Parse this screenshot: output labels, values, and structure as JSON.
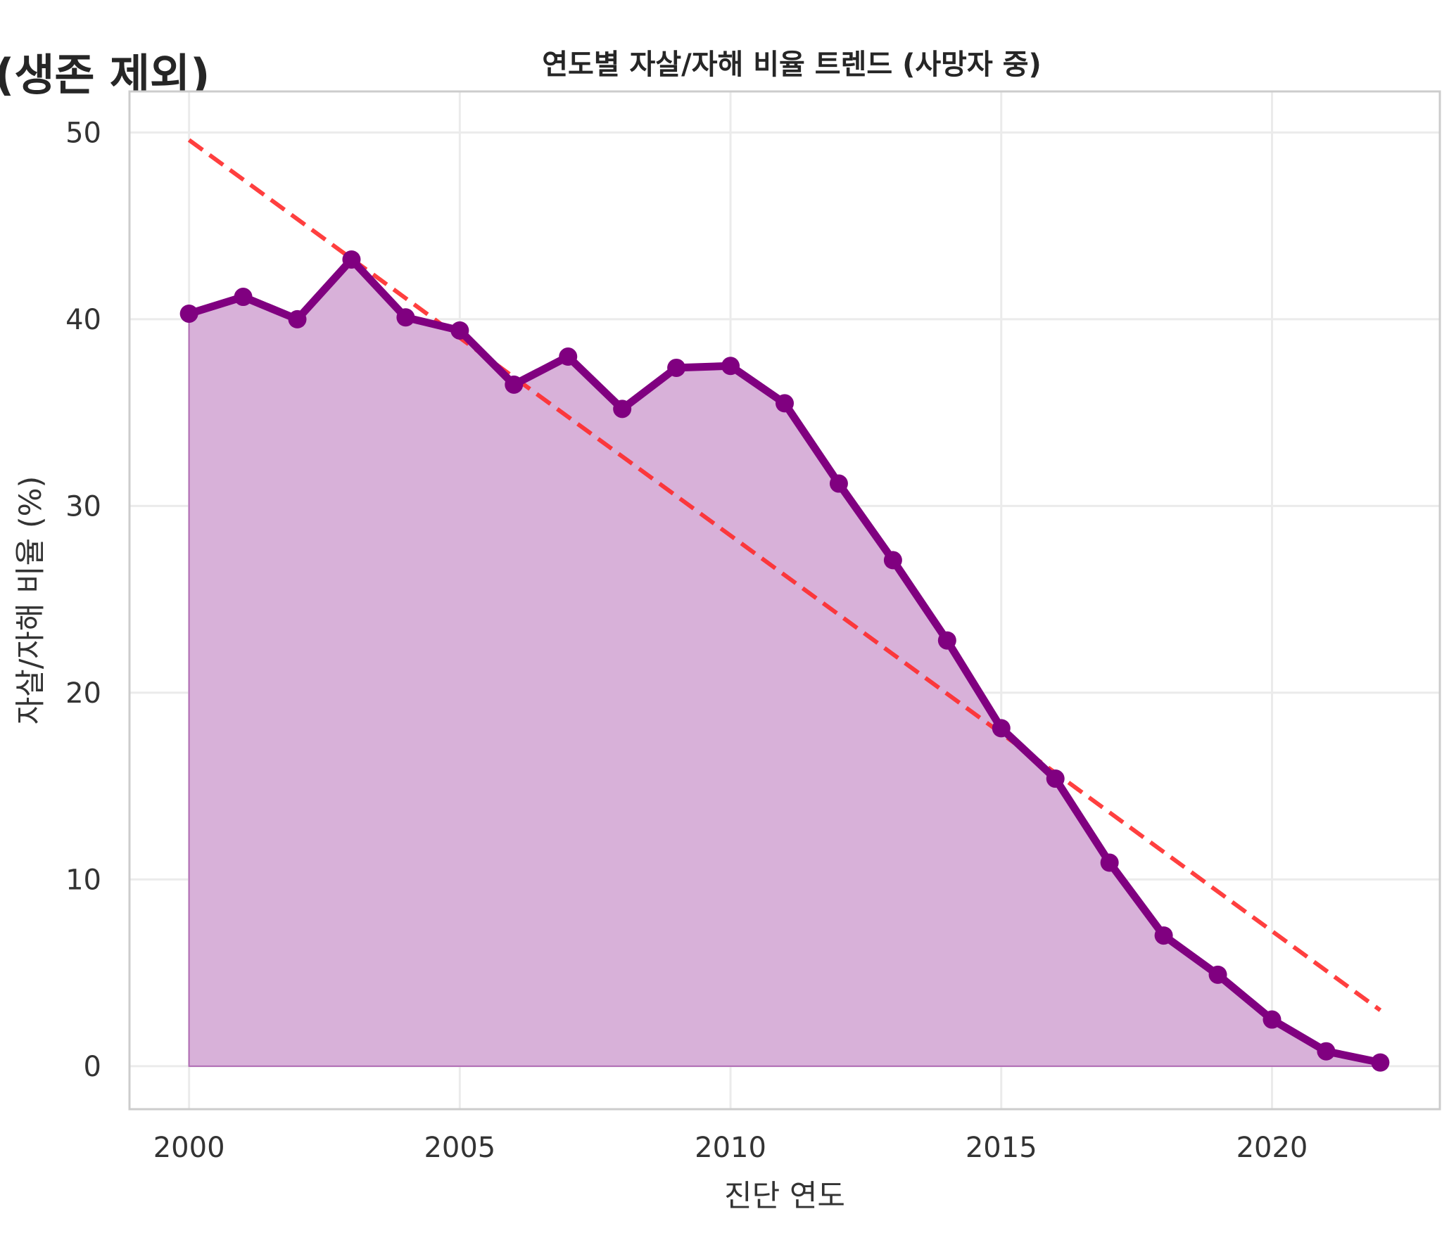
{
  "cut_title": "(생존 제외)",
  "chart_data": {
    "type": "area",
    "title": "연도별 자살/자해 비율 트렌드 (사망자 중)",
    "xlabel": "진단 연도",
    "ylabel": "자살/자해 비율 (%)",
    "xlim": [
      1998.9,
      2023.1
    ],
    "ylim": [
      -2.3,
      52.2
    ],
    "xticks": [
      2000,
      2005,
      2010,
      2015,
      2020
    ],
    "yticks": [
      0,
      10,
      20,
      30,
      40,
      50
    ],
    "grid": true,
    "x": [
      2000,
      2001,
      2002,
      2003,
      2004,
      2005,
      2006,
      2007,
      2008,
      2009,
      2010,
      2011,
      2012,
      2013,
      2014,
      2015,
      2016,
      2017,
      2018,
      2019,
      2020,
      2021,
      2022
    ],
    "series": [
      {
        "values": [
          40.3,
          41.2,
          40.0,
          43.2,
          40.1,
          39.4,
          36.5,
          38.0,
          35.2,
          37.4,
          37.5,
          35.5,
          31.2,
          27.1,
          22.8,
          18.1,
          15.4,
          10.9,
          7.0,
          4.9,
          2.5,
          0.8,
          0.2
        ],
        "color": "#800080",
        "fill_color": "#d8b1d9"
      }
    ],
    "trend_line": {
      "x": [
        2000,
        2022
      ],
      "values": [
        49.6,
        3.0
      ],
      "color": "#ff2a2a",
      "style": "dashed"
    }
  }
}
